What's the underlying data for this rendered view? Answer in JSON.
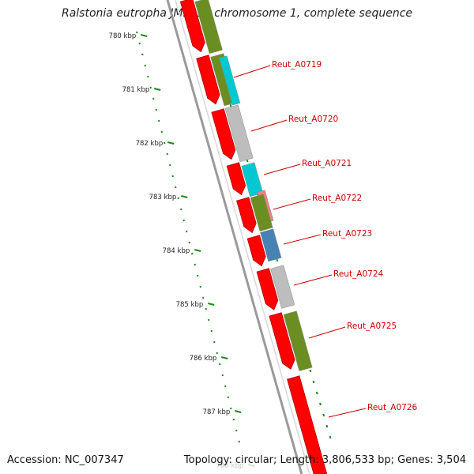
{
  "title": "Ralstonia eutropha JMP134 chromosome 1, complete sequence",
  "footer": {
    "accession": "Accession: NC_007347",
    "summary": "Topology: circular; Length: 3,806,533 bp; Genes: 3,504"
  },
  "colors": {
    "forward_strand": "#ff0000",
    "backbone": "#808080",
    "tick_mark": "#1a8a1a",
    "label": "#cc0000",
    "olive": "#6b8e23",
    "cyan": "#00c8d2",
    "gray": "#bdbdbd",
    "salmon": "#f08080",
    "steelblue": "#4682b4"
  },
  "ticks": [
    {
      "label": "780 kbp"
    },
    {
      "label": "781 kbp"
    },
    {
      "label": "782 kbp"
    },
    {
      "label": "783 kbp"
    },
    {
      "label": "784 kbp"
    },
    {
      "label": "785 kbp"
    },
    {
      "label": "786 kbp"
    },
    {
      "label": "787 kbp"
    },
    {
      "label": "788 kbp",
      "faded": true
    }
  ],
  "gene_labels": [
    "Reut_A0719",
    "Reut_A0720",
    "Reut_A0721",
    "Reut_A0722",
    "Reut_A0723",
    "Reut_A0724",
    "Reut_A0725",
    "Reut_A0726"
  ],
  "outer_features": [
    {
      "color": "olive"
    },
    {
      "color": "olive"
    },
    {
      "color": "cyan"
    },
    {
      "color": "gray"
    },
    {
      "color": "cyan"
    },
    {
      "color": "salmon"
    },
    {
      "color": "olive"
    },
    {
      "color": "steelblue"
    },
    {
      "color": "gray"
    },
    {
      "color": "olive"
    }
  ]
}
